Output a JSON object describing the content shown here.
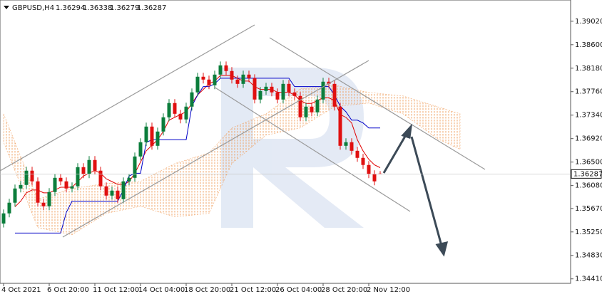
{
  "chart_data": {
    "type": "candlestick",
    "symbol": "GBPUSD,H4",
    "header_values": [
      1.36294,
      1.36338,
      1.36279,
      1.36287
    ],
    "bull_color": "#0b7d3b",
    "bear_color": "#e01010",
    "ylim": [
      1.3433,
      1.394
    ],
    "yticks": [
      {
        "value": 1.3902,
        "label": "1.39020"
      },
      {
        "value": 1.386,
        "label": "1.38600"
      },
      {
        "value": 1.3818,
        "label": "1.38180"
      },
      {
        "value": 1.3776,
        "label": "1.37760"
      },
      {
        "value": 1.3734,
        "label": "1.37340"
      },
      {
        "value": 1.3692,
        "label": "1.36920"
      },
      {
        "value": 1.365,
        "label": "1.36500"
      },
      {
        "value": 1.3608,
        "label": "1.36080"
      },
      {
        "value": 1.3567,
        "label": "1.35670"
      },
      {
        "value": 1.3525,
        "label": "1.35250"
      },
      {
        "value": 1.3483,
        "label": "1.34830"
      },
      {
        "value": 1.3441,
        "label": "1.34410"
      }
    ],
    "categories": [
      "4 Oct 2021",
      null,
      null,
      null,
      null,
      null,
      null,
      null,
      "6 Oct 20:00",
      null,
      null,
      null,
      null,
      null,
      null,
      null,
      "11 Oct 12:00",
      null,
      null,
      null,
      null,
      null,
      null,
      null,
      "14 Oct 04:00",
      null,
      null,
      null,
      null,
      null,
      null,
      null,
      "18 Oct 20:00",
      null,
      null,
      null,
      null,
      null,
      null,
      null,
      "21 Oct 12:00",
      null,
      null,
      null,
      null,
      null,
      null,
      null,
      "26 Oct 04:00",
      null,
      null,
      null,
      null,
      null,
      null,
      null,
      "28 Oct 20:00",
      null,
      null,
      null,
      null,
      null,
      null,
      null,
      "2 Nov 12:00",
      null,
      null
    ],
    "open": [
      1.354,
      1.35582,
      1.35773,
      1.36027,
      1.36091,
      1.36346,
      1.36155,
      1.35773,
      1.35709,
      1.35964,
      1.36218,
      1.36155,
      1.36027,
      1.36066,
      1.36409,
      1.36282,
      1.36537,
      1.36346,
      1.36066,
      1.359,
      1.35989,
      1.35836,
      1.36155,
      1.36218,
      1.366,
      1.36855,
      1.37135,
      1.36791,
      1.37046,
      1.37301,
      1.37556,
      1.37364,
      1.37263,
      1.37492,
      1.37747,
      1.38027,
      1.37976,
      1.37874,
      1.38065,
      1.3823,
      1.38129,
      1.37976,
      1.37899,
      1.38065,
      1.38001,
      1.37619,
      1.37772,
      1.37848,
      1.37747,
      1.37619,
      1.37899,
      1.37747,
      1.37683,
      1.37301,
      1.37492,
      1.3739,
      1.37619,
      1.37938,
      1.37899,
      1.37492,
      1.36791,
      1.36855,
      1.36702,
      1.36575,
      1.36448,
      1.36282,
      1.36294
    ],
    "high": [
      1.35652,
      1.35843,
      1.36097,
      1.36161,
      1.36416,
      1.36416,
      1.36225,
      1.35843,
      1.36034,
      1.36288,
      1.36288,
      1.36225,
      1.36136,
      1.36479,
      1.36479,
      1.36607,
      1.36607,
      1.36416,
      1.36136,
      1.36059,
      1.36059,
      1.36225,
      1.36288,
      1.3667,
      1.36925,
      1.37205,
      1.37205,
      1.37116,
      1.37371,
      1.37626,
      1.37626,
      1.37434,
      1.37562,
      1.37817,
      1.38097,
      1.38097,
      1.38046,
      1.38135,
      1.383,
      1.383,
      1.38199,
      1.38046,
      1.38135,
      1.38135,
      1.38071,
      1.37842,
      1.37918,
      1.37918,
      1.37817,
      1.37969,
      1.37969,
      1.37817,
      1.37753,
      1.37562,
      1.37562,
      1.37689,
      1.38008,
      1.38008,
      1.37969,
      1.37562,
      1.36925,
      1.36925,
      1.36772,
      1.36645,
      1.36518,
      1.36352,
      1.36338
    ],
    "low": [
      1.3533,
      1.35512,
      1.35703,
      1.35957,
      1.36021,
      1.36085,
      1.35703,
      1.35639,
      1.35639,
      1.35894,
      1.36085,
      1.35957,
      1.35957,
      1.35996,
      1.36212,
      1.36212,
      1.36276,
      1.35996,
      1.3583,
      1.3583,
      1.35766,
      1.35766,
      1.36085,
      1.36148,
      1.3653,
      1.36785,
      1.36721,
      1.36721,
      1.36976,
      1.37231,
      1.37294,
      1.37193,
      1.37193,
      1.37422,
      1.37677,
      1.37906,
      1.37804,
      1.37804,
      1.37995,
      1.38059,
      1.37906,
      1.37829,
      1.37829,
      1.37931,
      1.37549,
      1.37549,
      1.37702,
      1.37677,
      1.37549,
      1.37549,
      1.37677,
      1.37613,
      1.37231,
      1.37231,
      1.3732,
      1.3732,
      1.37549,
      1.37829,
      1.37422,
      1.36721,
      1.36721,
      1.36632,
      1.36505,
      1.36378,
      1.36212,
      1.36085,
      1.36279
    ],
    "close": [
      1.35582,
      1.35773,
      1.36027,
      1.36091,
      1.36346,
      1.36155,
      1.35773,
      1.35709,
      1.35964,
      1.36218,
      1.36155,
      1.36027,
      1.36066,
      1.36409,
      1.36282,
      1.36537,
      1.36346,
      1.36066,
      1.359,
      1.35989,
      1.35836,
      1.36155,
      1.36218,
      1.366,
      1.36855,
      1.37135,
      1.36791,
      1.37046,
      1.37301,
      1.37556,
      1.37364,
      1.37263,
      1.37492,
      1.37747,
      1.38027,
      1.37976,
      1.37874,
      1.38065,
      1.3823,
      1.38129,
      1.37976,
      1.37899,
      1.38065,
      1.38001,
      1.37619,
      1.37772,
      1.37848,
      1.37747,
      1.37619,
      1.37899,
      1.37747,
      1.37683,
      1.37301,
      1.37492,
      1.3739,
      1.37619,
      1.37938,
      1.37899,
      1.37492,
      1.36791,
      1.36855,
      1.36702,
      1.36575,
      1.36448,
      1.36282,
      1.36155,
      1.36287
    ],
    "lines": [
      {
        "color": "#e00000",
        "values": [
          null,
          null,
          1.357,
          1.358,
          1.3595,
          1.36,
          1.36,
          1.3595,
          1.3595,
          1.36,
          1.3605,
          1.3605,
          1.3605,
          1.3615,
          1.3625,
          1.363,
          1.3635,
          1.363,
          1.362,
          1.3615,
          1.361,
          1.361,
          1.3615,
          1.363,
          1.365,
          1.367,
          1.368,
          1.369,
          1.3705,
          1.3725,
          1.373,
          1.3735,
          1.374,
          1.3755,
          1.377,
          1.378,
          1.379,
          1.3795,
          1.3805,
          1.3805,
          1.3805,
          1.38,
          1.3795,
          1.3795,
          1.3785,
          1.378,
          1.378,
          1.378,
          1.3775,
          1.3775,
          1.3775,
          1.377,
          1.376,
          1.3755,
          1.3755,
          1.376,
          1.3765,
          1.3765,
          1.376,
          1.3735,
          1.373,
          1.372,
          1.369,
          1.367,
          1.3655,
          1.3645,
          1.364
        ]
      },
      {
        "color": "#0000c8",
        "values": [
          null,
          null,
          1.3523,
          1.3523,
          1.3523,
          1.3523,
          1.3523,
          1.3523,
          1.3523,
          1.3523,
          1.3523,
          1.356,
          1.358,
          1.358,
          1.358,
          1.358,
          1.358,
          1.358,
          1.358,
          1.358,
          1.358,
          1.36,
          1.3625,
          1.363,
          1.363,
          1.3685,
          1.369,
          1.369,
          1.369,
          1.369,
          1.369,
          1.369,
          1.369,
          1.375,
          1.377,
          1.3785,
          1.3785,
          1.379,
          1.38,
          1.38,
          1.38,
          1.38,
          1.38,
          1.38,
          1.38,
          1.38,
          1.38,
          1.38,
          1.38,
          1.38,
          1.38,
          1.3785,
          1.3785,
          1.3785,
          1.3785,
          1.3785,
          1.3785,
          1.3785,
          1.377,
          1.375,
          1.374,
          1.3725,
          1.3725,
          1.372,
          1.3711,
          1.3711,
          1.3711
        ]
      }
    ],
    "cloud": {
      "color": "#f0a060",
      "x": [
        0,
        6,
        12,
        18,
        24,
        30,
        36,
        40,
        46,
        52,
        58,
        64,
        70,
        76,
        80
      ],
      "upper": [
        1.37364,
        1.35836,
        1.36027,
        1.36116,
        1.36155,
        1.36473,
        1.36664,
        1.3711,
        1.37364,
        1.3781,
        1.37874,
        1.37747,
        1.37683,
        1.37492,
        1.37364
      ],
      "lower": [
        1.36855,
        1.35327,
        1.352,
        1.35582,
        1.35709,
        1.35518,
        1.35582,
        1.36473,
        1.36982,
        1.3711,
        1.37492,
        1.37556,
        1.37364,
        1.36919,
        1.36728
      ]
    }
  }
}
